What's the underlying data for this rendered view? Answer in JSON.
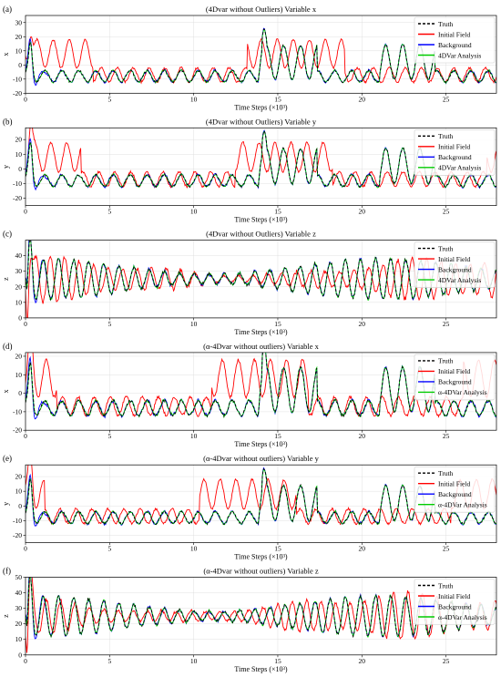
{
  "colors": {
    "truth": "#000000",
    "initial": "#ff0000",
    "background": "#0000ff",
    "analysis": "#00cc00"
  },
  "chart_data": [
    {
      "panel_label": "(a)",
      "type": "line",
      "title": "(4Dvar without Outliers) Variable x",
      "xlabel": "Time Steps (×10³)",
      "ylabel": "x",
      "xlim": [
        0,
        28
      ],
      "ylim": [
        -20,
        35
      ],
      "xticks": [
        0,
        5,
        10,
        15,
        20,
        25
      ],
      "yticks": [
        -20,
        -10,
        0,
        10,
        20,
        30
      ],
      "legend": "top-right",
      "variable": "x",
      "series": [
        {
          "name": "Truth",
          "role": "truth"
        },
        {
          "name": "Initial Field",
          "role": "initial"
        },
        {
          "name": "Background",
          "role": "background"
        },
        {
          "name": "4DVar Analysis",
          "role": "analysis"
        }
      ]
    },
    {
      "panel_label": "(b)",
      "type": "line",
      "title": "(4Dvar without Outliers) Variable y",
      "xlabel": "Time Steps (×10³)",
      "ylabel": "y",
      "xlim": [
        0,
        28
      ],
      "ylim": [
        -25,
        28
      ],
      "xticks": [
        0,
        5,
        10,
        15,
        20,
        25
      ],
      "yticks": [
        -20,
        -10,
        0,
        10,
        20
      ],
      "legend": "top-right",
      "variable": "y",
      "series": [
        {
          "name": "Truth",
          "role": "truth"
        },
        {
          "name": "Initial Field",
          "role": "initial"
        },
        {
          "name": "Background",
          "role": "background"
        },
        {
          "name": "4DVar Analysis",
          "role": "analysis"
        }
      ]
    },
    {
      "panel_label": "(c)",
      "type": "line",
      "title": "(4Dvar without Outliers) Variable z",
      "xlabel": "Time Steps (×10³)",
      "ylabel": "z",
      "xlim": [
        0,
        28
      ],
      "ylim": [
        0,
        50
      ],
      "xticks": [
        0,
        5,
        10,
        15,
        20,
        25
      ],
      "yticks": [
        0,
        10,
        20,
        30,
        40
      ],
      "legend": "top-right",
      "variable": "z",
      "series": [
        {
          "name": "Truth",
          "role": "truth"
        },
        {
          "name": "Initial Field",
          "role": "initial"
        },
        {
          "name": "Background",
          "role": "background"
        },
        {
          "name": "4DVar Analysis",
          "role": "analysis"
        }
      ]
    },
    {
      "panel_label": "(d)",
      "type": "line",
      "title": "(α-4Dvar without outliers) Variable x",
      "xlabel": "Time Steps (×10³)",
      "ylabel": "x",
      "xlim": [
        0,
        28
      ],
      "ylim": [
        -20,
        22
      ],
      "xticks": [
        0,
        5,
        10,
        15,
        20,
        25
      ],
      "yticks": [
        -20,
        -10,
        0,
        10,
        20
      ],
      "legend": "top-right",
      "variable": "x",
      "series": [
        {
          "name": "Truth",
          "role": "truth"
        },
        {
          "name": "Initial Field",
          "role": "initial"
        },
        {
          "name": "Background",
          "role": "background"
        },
        {
          "name": "α-4DVar Analysis",
          "role": "analysis"
        }
      ]
    },
    {
      "panel_label": "(e)",
      "type": "line",
      "title": "(α-4Dvar without outliers) Variable y",
      "xlabel": "Time Steps (×10³)",
      "ylabel": "y",
      "xlim": [
        0,
        28
      ],
      "ylim": [
        -25,
        28
      ],
      "xticks": [
        0,
        5,
        10,
        15,
        20,
        25
      ],
      "yticks": [
        -20,
        -10,
        0,
        10,
        20
      ],
      "legend": "top-right",
      "variable": "y",
      "series": [
        {
          "name": "Truth",
          "role": "truth"
        },
        {
          "name": "Initial Field",
          "role": "initial"
        },
        {
          "name": "Background",
          "role": "background"
        },
        {
          "name": "α-4DVar Analysis",
          "role": "analysis"
        }
      ]
    },
    {
      "panel_label": "(f)",
      "type": "line",
      "title": "(α-4Dvar without outliers) Variable z",
      "xlabel": "Time Steps (×10³)",
      "ylabel": "z",
      "xlim": [
        0,
        28
      ],
      "ylim": [
        0,
        50
      ],
      "xticks": [
        0,
        5,
        10,
        15,
        20,
        25
      ],
      "yticks": [
        0,
        10,
        20,
        30,
        40,
        50
      ],
      "legend": "top-right",
      "variable": "z",
      "series": [
        {
          "name": "Truth",
          "role": "truth"
        },
        {
          "name": "Initial Field",
          "role": "initial"
        },
        {
          "name": "Background",
          "role": "background"
        },
        {
          "name": "α-4DVar Analysis",
          "role": "analysis"
        }
      ]
    }
  ]
}
